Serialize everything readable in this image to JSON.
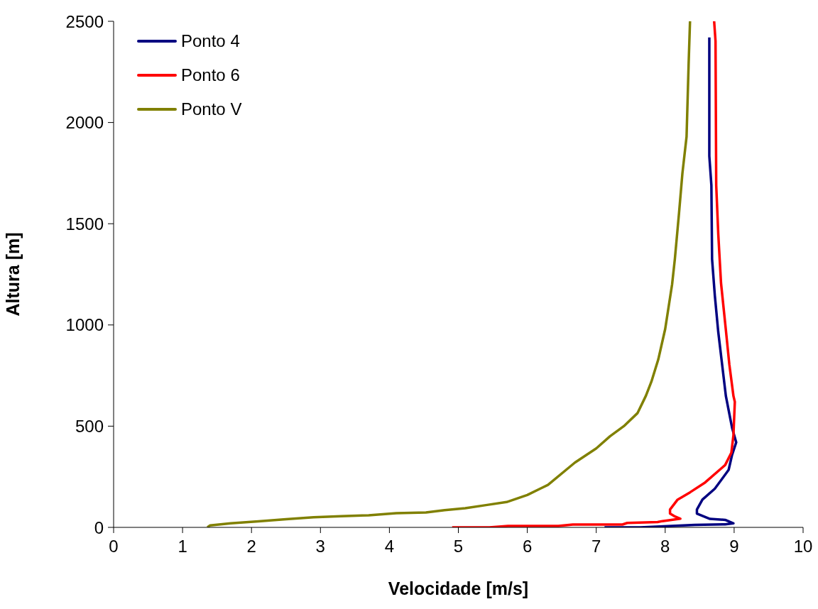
{
  "chart_data": {
    "type": "line",
    "xlabel": "Velocidade [m/s]",
    "ylabel": "Altura [m]",
    "xlim": [
      0,
      10
    ],
    "xticks": [
      0,
      1,
      2,
      3,
      4,
      5,
      6,
      7,
      8,
      9,
      10
    ],
    "ylim": [
      0,
      2500
    ],
    "yticks": [
      0,
      500,
      1000,
      1500,
      2000,
      2500
    ],
    "grid": false,
    "legend": "top left",
    "marker": "none",
    "line_style": "solid",
    "series": [
      {
        "name": "Ponto 4",
        "color": "#000080",
        "x": [
          7.12,
          7.64,
          8.43,
          8.87,
          8.99,
          8.87,
          8.65,
          8.46,
          8.46,
          8.54,
          8.72,
          8.92,
          8.97,
          9.03,
          8.97,
          8.88,
          8.77,
          8.72,
          8.68,
          8.67,
          8.64,
          8.64
        ],
        "values": [
          0,
          0,
          12,
          15,
          20,
          37,
          42,
          68,
          88,
          137,
          191,
          284,
          358,
          420,
          492,
          649,
          964,
          1145,
          1325,
          1690,
          1834,
          2420
        ]
      },
      {
        "name": "Ponto 6",
        "color": "#ff0000",
        "x": [
          4.91,
          5.45,
          5.72,
          6.45,
          6.66,
          7.38,
          7.45,
          7.89,
          7.96,
          8.22,
          8.13,
          8.07,
          8.07,
          8.18,
          8.36,
          8.58,
          8.87,
          8.96,
          8.99,
          9.01,
          8.99,
          8.93,
          8.88,
          8.81,
          8.77,
          8.74,
          8.73,
          8.71
        ],
        "values": [
          0,
          0,
          7,
          7,
          14,
          14,
          22,
          26,
          31,
          43,
          56,
          68,
          88,
          137,
          173,
          222,
          308,
          369,
          456,
          620,
          649,
          806,
          975,
          1206,
          1448,
          1690,
          2402,
          2500
        ]
      },
      {
        "name": "Ponto V",
        "color": "#808000",
        "x": [
          1.36,
          1.4,
          1.7,
          2.1,
          2.5,
          2.9,
          3.3,
          3.7,
          4.1,
          4.53,
          4.8,
          5.1,
          5.4,
          5.7,
          6.0,
          6.3,
          6.69,
          7.0,
          7.2,
          7.4,
          7.6,
          7.72,
          7.8,
          7.9,
          8.0,
          8.1,
          8.14,
          8.2,
          8.25,
          8.31,
          8.34,
          8.36
        ],
        "values": [
          0,
          10,
          20,
          30,
          40,
          50,
          55,
          60,
          70,
          74,
          85,
          95,
          110,
          125,
          160,
          210,
          320,
          390,
          450,
          500,
          565,
          650,
          720,
          830,
          980,
          1200,
          1325,
          1550,
          1750,
          1930,
          2290,
          2500
        ]
      }
    ]
  }
}
